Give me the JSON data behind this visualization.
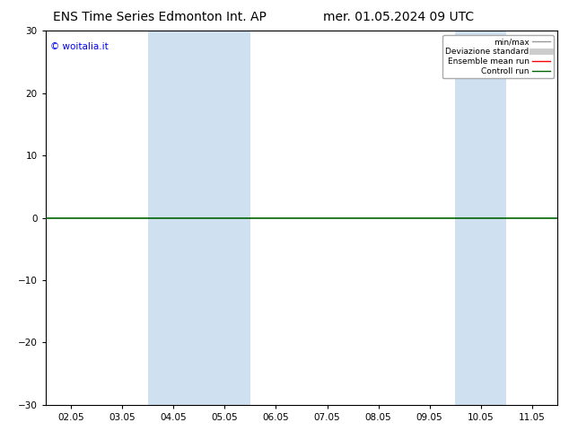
{
  "title_left": "ENS Time Series Edmonton Int. AP",
  "title_right": "mer. 01.05.2024 09 UTC",
  "watermark": "© woitalia.it",
  "ylim": [
    -30,
    30
  ],
  "yticks": [
    -30,
    -20,
    -10,
    0,
    10,
    20,
    30
  ],
  "xlabel_dates": [
    "02.05",
    "03.05",
    "04.05",
    "05.05",
    "06.05",
    "07.05",
    "08.05",
    "09.05",
    "10.05",
    "11.05"
  ],
  "shade_bands": [
    {
      "xstart": 2,
      "xend": 3
    },
    {
      "xstart": 3,
      "xend": 4
    },
    {
      "xstart": 8,
      "xend": 9
    }
  ],
  "shade_color": "#cfe0f0",
  "background_color": "#ffffff",
  "legend_entries": [
    {
      "label": "min/max",
      "color": "#999999",
      "lw": 1.0,
      "style": "-"
    },
    {
      "label": "Deviazione standard",
      "color": "#cccccc",
      "lw": 5,
      "style": "-"
    },
    {
      "label": "Ensemble mean run",
      "color": "#ff0000",
      "lw": 1.0,
      "style": "-"
    },
    {
      "label": "Controll run",
      "color": "#006400",
      "lw": 1.0,
      "style": "-"
    }
  ],
  "title_fontsize": 10,
  "tick_fontsize": 7.5,
  "watermark_color": "#0000ee",
  "zero_line_color": "#006400",
  "border_color": "#000000",
  "fig_width": 6.34,
  "fig_height": 4.9,
  "dpi": 100
}
